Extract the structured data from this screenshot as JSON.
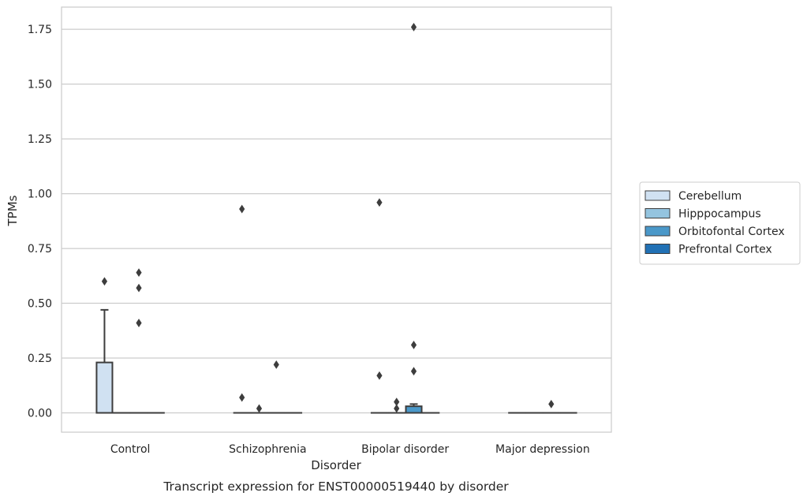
{
  "chart_data": {
    "type": "box",
    "xlabel": "Disorder",
    "ylabel": "TPMs",
    "caption": "Transcript expression for ENST00000519440 by disorder",
    "categories": [
      "Control",
      "Schizophrenia",
      "Bipolar disorder",
      "Major depression"
    ],
    "ylim": [
      -0.08,
      1.85
    ],
    "yticks": [
      0.0,
      0.25,
      0.5,
      0.75,
      1.0,
      1.25,
      1.5,
      1.75
    ],
    "ytick_labels": [
      "0.00",
      "0.25",
      "0.50",
      "0.75",
      "1.00",
      "1.25",
      "1.50",
      "1.75"
    ],
    "grid": true,
    "legend_placement": "right",
    "series": [
      {
        "name": "Cerebellum",
        "color": "#d0e1f2",
        "boxes": [
          {
            "q1": 0.0,
            "median": 0.0,
            "q3": 0.23,
            "whislo": 0.0,
            "whishi": 0.47,
            "fliers": [
              0.6
            ]
          },
          {
            "q1": 0.0,
            "median": 0.0,
            "q3": 0.0,
            "whislo": 0.0,
            "whishi": 0.0,
            "fliers": [
              0.93,
              0.07
            ]
          },
          {
            "q1": 0.0,
            "median": 0.0,
            "q3": 0.0,
            "whislo": 0.0,
            "whishi": 0.0,
            "fliers": [
              0.96,
              0.17
            ]
          },
          {
            "q1": 0.0,
            "median": 0.0,
            "q3": 0.0,
            "whislo": 0.0,
            "whishi": 0.0,
            "fliers": []
          }
        ]
      },
      {
        "name": "Hipppocampus",
        "color": "#94c4df",
        "boxes": [
          {
            "q1": 0.0,
            "median": 0.0,
            "q3": 0.0,
            "whislo": 0.0,
            "whishi": 0.0,
            "fliers": []
          },
          {
            "q1": 0.0,
            "median": 0.0,
            "q3": 0.0,
            "whislo": 0.0,
            "whishi": 0.0,
            "fliers": [
              0.02
            ]
          },
          {
            "q1": 0.0,
            "median": 0.0,
            "q3": 0.0,
            "whislo": 0.0,
            "whishi": 0.0,
            "fliers": [
              0.05,
              0.02
            ]
          },
          {
            "q1": 0.0,
            "median": 0.0,
            "q3": 0.0,
            "whislo": 0.0,
            "whishi": 0.0,
            "fliers": []
          }
        ]
      },
      {
        "name": "Orbitofontal Cortex",
        "color": "#4a98c9",
        "boxes": [
          {
            "q1": 0.0,
            "median": 0.0,
            "q3": 0.0,
            "whislo": 0.0,
            "whishi": 0.0,
            "fliers": [
              0.64,
              0.57,
              0.41
            ]
          },
          {
            "q1": 0.0,
            "median": 0.0,
            "q3": 0.0,
            "whislo": 0.0,
            "whishi": 0.0,
            "fliers": [
              0.22
            ]
          },
          {
            "q1": 0.0,
            "median": 0.0,
            "q3": 0.03,
            "whislo": 0.0,
            "whishi": 0.04,
            "fliers": [
              1.76,
              0.31,
              0.19
            ]
          },
          {
            "q1": 0.0,
            "median": 0.0,
            "q3": 0.0,
            "whislo": 0.0,
            "whishi": 0.0,
            "fliers": [
              0.04
            ]
          }
        ]
      },
      {
        "name": "Prefrontal Cortex",
        "color": "#2171b5",
        "boxes": [
          {
            "q1": 0.0,
            "median": 0.0,
            "q3": 0.0,
            "whislo": 0.0,
            "whishi": 0.0,
            "fliers": []
          },
          {
            "q1": 0.0,
            "median": 0.0,
            "q3": 0.0,
            "whislo": 0.0,
            "whishi": 0.0,
            "fliers": []
          },
          {
            "q1": 0.0,
            "median": 0.0,
            "q3": 0.0,
            "whislo": 0.0,
            "whishi": 0.0,
            "fliers": []
          },
          {
            "q1": 0.0,
            "median": 0.0,
            "q3": 0.0,
            "whislo": 0.0,
            "whishi": 0.0,
            "fliers": []
          }
        ]
      }
    ]
  },
  "colors": {
    "grid": "#cccccc",
    "frame": "#cccccc",
    "box_edge": "#3d3d3d",
    "text": "#262626"
  }
}
